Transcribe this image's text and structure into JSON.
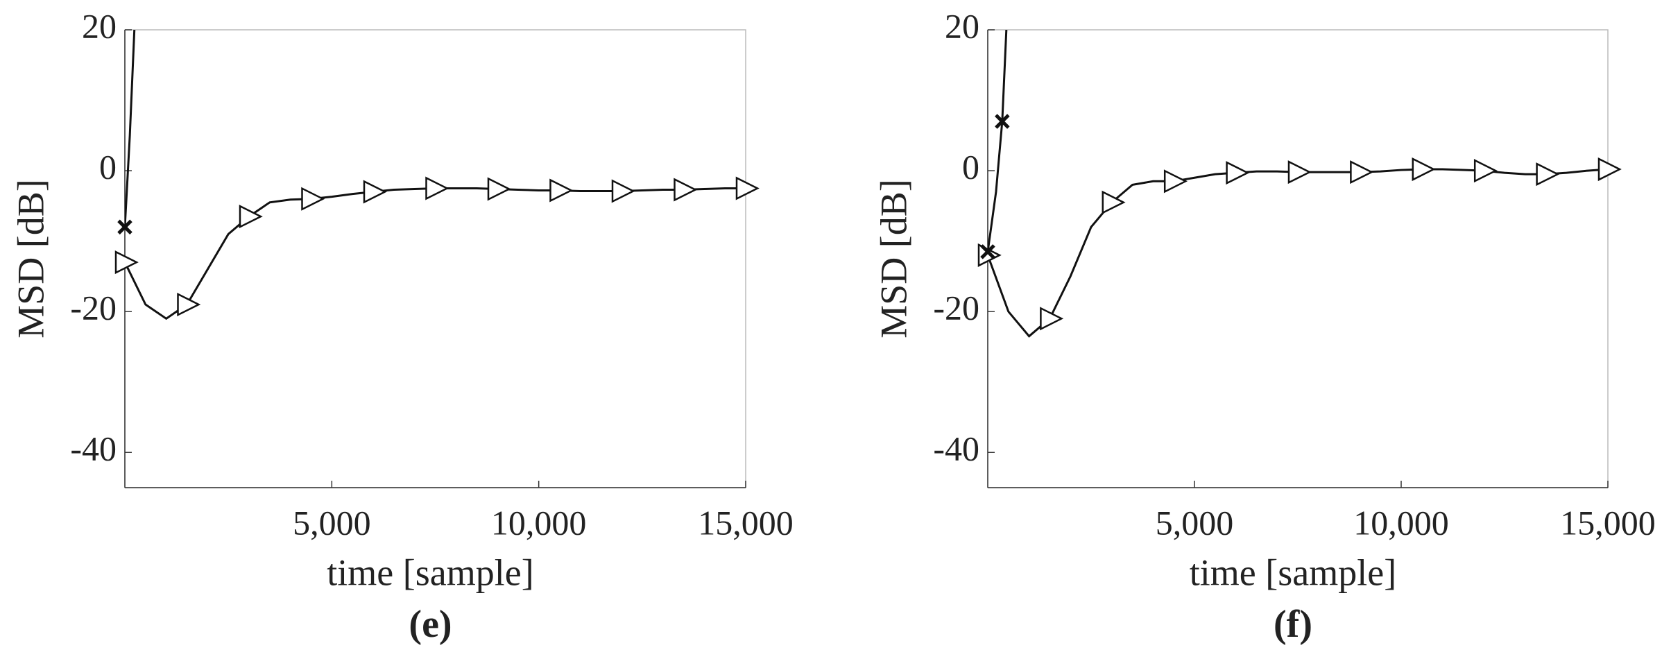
{
  "chart_data": [
    {
      "type": "line",
      "xlabel": "time [sample]",
      "ylabel": "MSD [dB]",
      "caption": "(e)",
      "xlim": [
        0,
        15000
      ],
      "ylim": [
        -45,
        20
      ],
      "xticks": [
        {
          "value": 5000,
          "label": "5,000"
        },
        {
          "value": 10000,
          "label": "10,000"
        },
        {
          "value": 15000,
          "label": "15,000"
        }
      ],
      "yticks": [
        -40,
        -20,
        0,
        20
      ],
      "grid": false,
      "series": [
        {
          "color": "#111111",
          "marker": "triangle",
          "markevery": 3,
          "x": [
            0,
            500,
            1000,
            1500,
            2000,
            2500,
            3000,
            3500,
            4000,
            4500,
            5000,
            5500,
            6000,
            6500,
            7000,
            7500,
            8000,
            8500,
            9000,
            9500,
            10000,
            10500,
            11000,
            11500,
            12000,
            12500,
            13000,
            13500,
            14000,
            14500,
            15000
          ],
          "values": [
            -13,
            -19,
            -21,
            -19,
            -14,
            -9,
            -6.5,
            -4.5,
            -4.1,
            -4,
            -3.7,
            -3.3,
            -3,
            -2.7,
            -2.6,
            -2.5,
            -2.5,
            -2.5,
            -2.6,
            -2.7,
            -2.8,
            -2.8,
            -2.9,
            -2.9,
            -2.9,
            -2.8,
            -2.7,
            -2.7,
            -2.6,
            -2.5,
            -2.5
          ]
        },
        {
          "color": "#111111",
          "marker": "cross",
          "markevery": 3,
          "x": [
            0,
            120,
            230
          ],
          "values": [
            -8,
            5,
            20
          ]
        }
      ]
    },
    {
      "type": "line",
      "xlabel": "time [sample]",
      "ylabel": "MSD [dB]",
      "caption": "(f)",
      "xlim": [
        0,
        15000
      ],
      "ylim": [
        -45,
        20
      ],
      "xticks": [
        {
          "value": 5000,
          "label": "5,000"
        },
        {
          "value": 10000,
          "label": "10,000"
        },
        {
          "value": 15000,
          "label": "15,000"
        }
      ],
      "yticks": [
        -40,
        -20,
        0,
        20
      ],
      "grid": false,
      "series": [
        {
          "color": "#111111",
          "marker": "triangle",
          "markevery": 3,
          "x": [
            0,
            500,
            1000,
            1500,
            2000,
            2500,
            3000,
            3500,
            4000,
            4500,
            5000,
            5500,
            6000,
            6500,
            7000,
            7500,
            8000,
            8500,
            9000,
            9500,
            10000,
            10500,
            11000,
            11500,
            12000,
            12500,
            13000,
            13500,
            14000,
            14500,
            15000
          ],
          "values": [
            -12,
            -20,
            -23.5,
            -21,
            -15,
            -8,
            -4.5,
            -2,
            -1.5,
            -1.5,
            -1,
            -0.5,
            -0.3,
            -0.1,
            -0.1,
            -0.2,
            -0.2,
            -0.2,
            -0.2,
            -0.1,
            0.1,
            0.2,
            0.2,
            0.1,
            0,
            -0.3,
            -0.5,
            -0.5,
            -0.3,
            0,
            0.2
          ]
        },
        {
          "color": "#111111",
          "marker": "cross",
          "markevery": 2,
          "x": [
            0,
            200,
            350,
            450
          ],
          "values": [
            -11.5,
            -3,
            7,
            20
          ]
        }
      ]
    }
  ]
}
